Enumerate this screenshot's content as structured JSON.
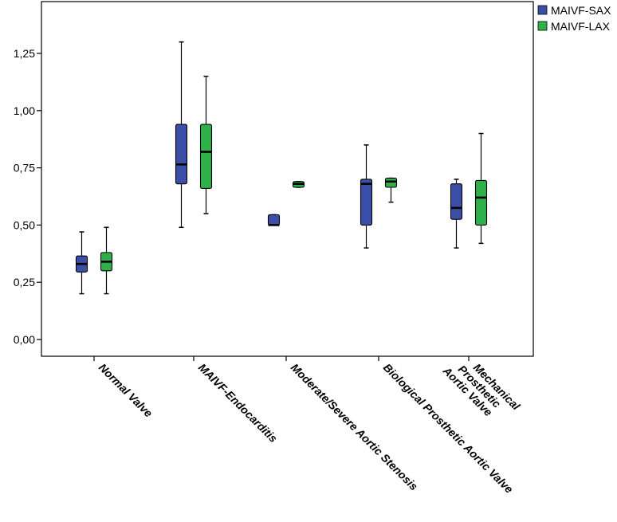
{
  "chart_data": {
    "type": "boxplot",
    "title": "",
    "xlabel": "",
    "ylabel": "",
    "ylim": [
      -0.05,
      1.47
    ],
    "yticks": [
      0.0,
      0.25,
      0.5,
      0.75,
      1.0,
      1.25
    ],
    "ytick_labels": [
      "0,00",
      "0,25",
      "0,50",
      "0,75",
      "1,00",
      "1,25"
    ],
    "categories": [
      "Normal Valve",
      "MAIVF-Endocarditis",
      "Moderate/Severe Aortic Stenosis",
      "Biological Prosthetic Aortic Valve",
      "Mechanical Prosthetic Aortic Valve"
    ],
    "mechanical_label_lines": [
      "Mechanical",
      "Prosthetic",
      "Aortic Valve"
    ],
    "legend_position": "top-right",
    "series": [
      {
        "name": "MAIVF-SAX",
        "color": "#3c4fa8",
        "boxes": [
          {
            "min": 0.2,
            "q1": 0.295,
            "median": 0.33,
            "q3": 0.365,
            "max": 0.47
          },
          {
            "min": 0.49,
            "q1": 0.68,
            "median": 0.765,
            "q3": 0.94,
            "max": 1.3
          },
          {
            "min": 0.5,
            "q1": 0.5,
            "median": 0.5,
            "q3": 0.545,
            "max": 0.545
          },
          {
            "min": 0.4,
            "q1": 0.5,
            "median": 0.68,
            "q3": 0.7,
            "max": 0.85
          },
          {
            "min": 0.4,
            "q1": 0.525,
            "median": 0.575,
            "q3": 0.68,
            "max": 0.7
          }
        ]
      },
      {
        "name": "MAIVF-LAX",
        "color": "#2fb04a",
        "boxes": [
          {
            "min": 0.2,
            "q1": 0.3,
            "median": 0.34,
            "q3": 0.38,
            "max": 0.49
          },
          {
            "min": 0.55,
            "q1": 0.66,
            "median": 0.82,
            "q3": 0.94,
            "max": 1.15
          },
          {
            "min": 0.665,
            "q1": 0.665,
            "median": 0.68,
            "q3": 0.69,
            "max": 0.69
          },
          {
            "min": 0.6,
            "q1": 0.665,
            "median": 0.69,
            "q3": 0.705,
            "max": 0.705
          },
          {
            "min": 0.42,
            "q1": 0.5,
            "median": 0.62,
            "q3": 0.695,
            "max": 0.9
          }
        ]
      }
    ]
  }
}
